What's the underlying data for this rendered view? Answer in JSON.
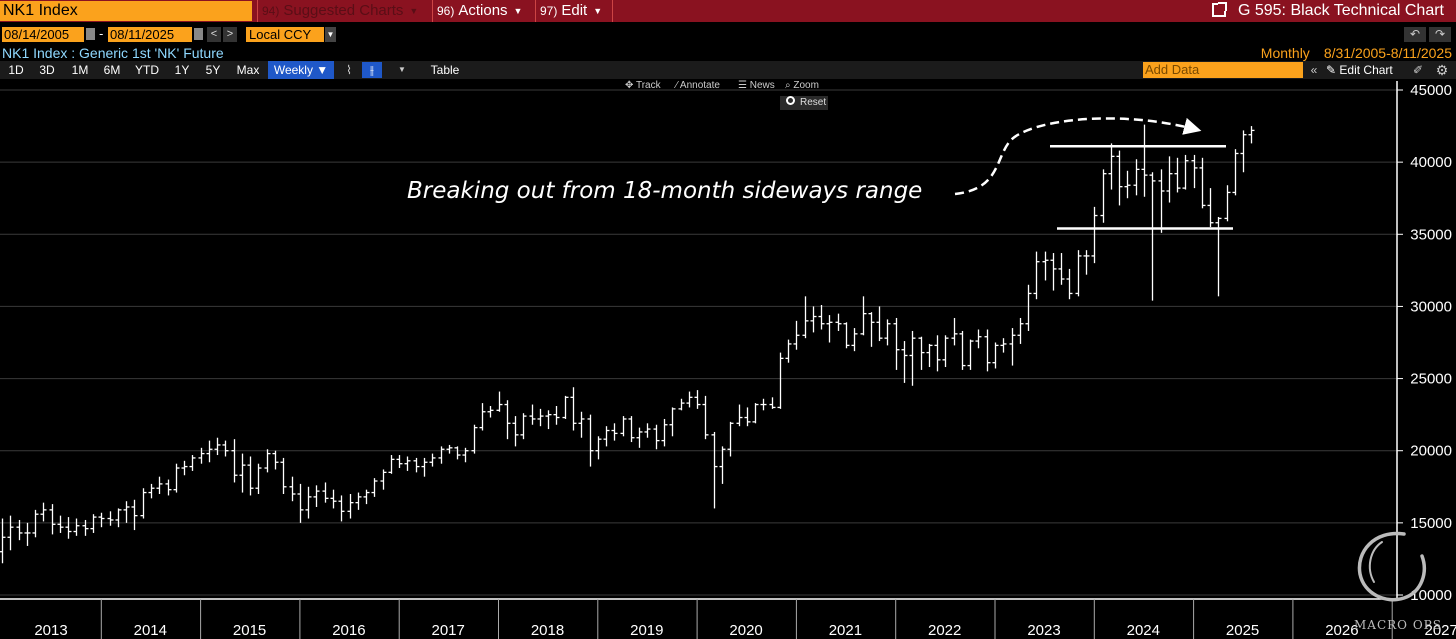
{
  "header": {
    "ticker": "NK1 Index",
    "menu": [
      {
        "num": "94)",
        "label": "Suggested Charts"
      },
      {
        "num": "96)",
        "label": "Actions"
      },
      {
        "num": "97)",
        "label": "Edit"
      }
    ],
    "page_title": "G 595: Black Technical Chart"
  },
  "controls": {
    "start_date": "08/14/2005",
    "end_date": "08/11/2025",
    "date_separator": "-",
    "currency": "Local CCY"
  },
  "security": {
    "description": "NK1 Index : Generic 1st 'NK' Future",
    "periodicity": "Monthly",
    "date_range": "8/31/2005-8/11/2025"
  },
  "toolbar": {
    "ranges": [
      "1D",
      "3D",
      "1M",
      "6M",
      "YTD",
      "1Y",
      "5Y",
      "Max"
    ],
    "frequency": "Weekly ▼",
    "table_label": "Table",
    "add_data_placeholder": "Add Data",
    "edit_chart_label": "Edit Chart"
  },
  "chart_tools": {
    "track": "Track",
    "annotate": "Annotate",
    "news": "News",
    "zoom": "Zoom",
    "reset": "Reset"
  },
  "colors": {
    "header_bg": "#8a1220",
    "amber": "#fba21c",
    "selected_blue": "#1f58c8",
    "info_cyan": "#8fd8ff"
  },
  "watermark": "MACRO OPS",
  "chart_data": {
    "type": "ohlc-bar",
    "annotation": "Breaking out from 18-month sideways range",
    "x_ticks": [
      "2013",
      "2014",
      "2015",
      "2016",
      "2017",
      "2018",
      "2019",
      "2020",
      "2021",
      "2022",
      "2023",
      "2024",
      "2025",
      "2026",
      "2027"
    ],
    "y_ticks": [
      10000,
      15000,
      20000,
      25000,
      30000,
      35000,
      40000,
      45000
    ],
    "ylim": [
      9000,
      46000
    ],
    "range_lines": {
      "upper": 41100,
      "lower": 35400
    },
    "bars": [
      [
        2013.0,
        13000,
        15300,
        12200,
        14000
      ],
      [
        2013.083,
        14000,
        15500,
        13100,
        14700
      ],
      [
        2013.167,
        14700,
        15200,
        13800,
        14300
      ],
      [
        2013.25,
        14300,
        15000,
        13400,
        14300
      ],
      [
        2013.333,
        14300,
        15900,
        14000,
        15600
      ],
      [
        2013.417,
        15600,
        16400,
        15100,
        15900
      ],
      [
        2013.5,
        15900,
        16300,
        14200,
        14900
      ],
      [
        2013.583,
        14900,
        15500,
        14300,
        14700
      ],
      [
        2013.667,
        14700,
        15400,
        13900,
        14400
      ],
      [
        2013.75,
        14400,
        15300,
        14100,
        14800
      ],
      [
        2013.833,
        14800,
        15200,
        14100,
        14600
      ],
      [
        2013.917,
        14600,
        15600,
        14300,
        15400
      ],
      [
        2014.0,
        15400,
        15700,
        14700,
        15300
      ],
      [
        2014.083,
        15300,
        15800,
        14800,
        15200
      ],
      [
        2014.167,
        15200,
        16000,
        14700,
        15900
      ],
      [
        2014.25,
        15900,
        16500,
        15000,
        16100
      ],
      [
        2014.333,
        16100,
        16600,
        14500,
        15500
      ],
      [
        2014.417,
        15500,
        17400,
        15300,
        17100
      ],
      [
        2014.5,
        17100,
        17700,
        16700,
        17400
      ],
      [
        2014.583,
        17400,
        18200,
        17000,
        17700
      ],
      [
        2014.667,
        17700,
        18000,
        16900,
        17300
      ],
      [
        2014.75,
        17300,
        19100,
        17100,
        18800
      ],
      [
        2014.833,
        18800,
        19300,
        18300,
        18900
      ],
      [
        2014.917,
        18900,
        19700,
        18600,
        19500
      ],
      [
        2015.0,
        19500,
        20200,
        19100,
        19800
      ],
      [
        2015.083,
        19800,
        20700,
        19200,
        20100
      ],
      [
        2015.167,
        20100,
        20900,
        19700,
        20400
      ],
      [
        2015.25,
        20400,
        20700,
        19600,
        20000
      ],
      [
        2015.333,
        20000,
        20800,
        17800,
        18300
      ],
      [
        2015.417,
        18300,
        19800,
        17100,
        19000
      ],
      [
        2015.5,
        19000,
        19600,
        16900,
        17400
      ],
      [
        2015.583,
        17400,
        19100,
        17000,
        18800
      ],
      [
        2015.667,
        18800,
        20100,
        18500,
        19800
      ],
      [
        2015.75,
        19800,
        20000,
        18700,
        19200
      ],
      [
        2015.833,
        19200,
        19500,
        17000,
        17500
      ],
      [
        2015.917,
        17500,
        18200,
        16500,
        17000
      ],
      [
        2016.0,
        17000,
        17700,
        15000,
        15900
      ],
      [
        2016.083,
        15900,
        17500,
        15300,
        16800
      ],
      [
        2016.167,
        16800,
        17600,
        16100,
        17200
      ],
      [
        2016.25,
        17200,
        17800,
        16400,
        16700
      ],
      [
        2016.333,
        16700,
        17300,
        16000,
        16500
      ],
      [
        2016.417,
        16500,
        16900,
        15100,
        15800
      ],
      [
        2016.5,
        15800,
        17000,
        15300,
        16400
      ],
      [
        2016.583,
        16400,
        17100,
        15900,
        16800
      ],
      [
        2016.667,
        16800,
        17300,
        16300,
        17100
      ],
      [
        2016.75,
        17100,
        18100,
        16800,
        17900
      ],
      [
        2016.833,
        17900,
        18700,
        17300,
        18500
      ],
      [
        2016.917,
        18500,
        19700,
        18400,
        19400
      ],
      [
        2017.0,
        19400,
        19700,
        18800,
        19100
      ],
      [
        2017.083,
        19100,
        19600,
        18600,
        19300
      ],
      [
        2017.167,
        19300,
        19500,
        18500,
        18900
      ],
      [
        2017.25,
        18900,
        19500,
        18200,
        19200
      ],
      [
        2017.333,
        19200,
        19800,
        18900,
        19500
      ],
      [
        2017.417,
        19500,
        20300,
        19100,
        20100
      ],
      [
        2017.5,
        20100,
        20400,
        19800,
        20200
      ],
      [
        2017.583,
        20200,
        20300,
        19400,
        19700
      ],
      [
        2017.667,
        19700,
        20200,
        19200,
        20000
      ],
      [
        2017.75,
        20000,
        21800,
        19800,
        21600
      ],
      [
        2017.833,
        21600,
        23300,
        21400,
        22700
      ],
      [
        2017.917,
        22700,
        23100,
        22300,
        22800
      ],
      [
        2018.0,
        22800,
        24100,
        22700,
        23200
      ],
      [
        2018.083,
        23200,
        23500,
        20800,
        21900
      ],
      [
        2018.167,
        21900,
        22400,
        20300,
        21100
      ],
      [
        2018.25,
        21100,
        22600,
        20800,
        22400
      ],
      [
        2018.333,
        22400,
        23200,
        21800,
        22200
      ],
      [
        2018.417,
        22200,
        22900,
        21700,
        22400
      ],
      [
        2018.5,
        22400,
        22800,
        21500,
        22500
      ],
      [
        2018.583,
        22500,
        23100,
        21800,
        22300
      ],
      [
        2018.667,
        22300,
        23800,
        22200,
        23700
      ],
      [
        2018.75,
        23700,
        24400,
        21400,
        21900
      ],
      [
        2018.833,
        21900,
        22700,
        20900,
        22200
      ],
      [
        2018.917,
        22200,
        22500,
        18900,
        20000
      ],
      [
        2019.0,
        20000,
        21000,
        19400,
        20800
      ],
      [
        2019.083,
        20800,
        21700,
        20300,
        21400
      ],
      [
        2019.167,
        21400,
        21900,
        20700,
        21200
      ],
      [
        2019.25,
        21200,
        22400,
        21000,
        22200
      ],
      [
        2019.333,
        22200,
        22400,
        20600,
        20900
      ],
      [
        2019.417,
        20900,
        21600,
        20200,
        21300
      ],
      [
        2019.5,
        21300,
        21900,
        20900,
        21500
      ],
      [
        2019.583,
        21500,
        21800,
        20100,
        20700
      ],
      [
        2019.667,
        20700,
        22200,
        20300,
        21800
      ],
      [
        2019.75,
        21800,
        23000,
        21000,
        22900
      ],
      [
        2019.833,
        22900,
        23600,
        22800,
        23300
      ],
      [
        2019.917,
        23300,
        24100,
        23000,
        23700
      ],
      [
        2020.0,
        23700,
        24200,
        22900,
        23200
      ],
      [
        2020.083,
        23200,
        23800,
        20800,
        21100
      ],
      [
        2020.167,
        21100,
        21300,
        16000,
        18900
      ],
      [
        2020.25,
        18900,
        20300,
        17700,
        20100
      ],
      [
        2020.333,
        20100,
        22000,
        19600,
        21900
      ],
      [
        2020.417,
        21900,
        23200,
        21700,
        22300
      ],
      [
        2020.5,
        22300,
        23000,
        21700,
        22000
      ],
      [
        2020.583,
        22000,
        23300,
        21900,
        23200
      ],
      [
        2020.667,
        23200,
        23600,
        22800,
        23200
      ],
      [
        2020.75,
        23200,
        23700,
        22900,
        23000
      ],
      [
        2020.833,
        23000,
        26800,
        22900,
        26400
      ],
      [
        2020.917,
        26400,
        27700,
        26100,
        27400
      ],
      [
        2021.0,
        27400,
        29000,
        27000,
        28000
      ],
      [
        2021.083,
        28000,
        30700,
        27800,
        29000
      ],
      [
        2021.167,
        29000,
        30000,
        28200,
        29300
      ],
      [
        2021.25,
        29300,
        30100,
        28400,
        28800
      ],
      [
        2021.333,
        28800,
        29400,
        27500,
        28900
      ],
      [
        2021.417,
        28900,
        29500,
        28300,
        28800
      ],
      [
        2021.5,
        28800,
        28900,
        27100,
        27300
      ],
      [
        2021.583,
        27300,
        28500,
        26900,
        28100
      ],
      [
        2021.667,
        28100,
        30700,
        28000,
        29500
      ],
      [
        2021.75,
        29500,
        29600,
        27200,
        28900
      ],
      [
        2021.833,
        28900,
        30000,
        27600,
        27800
      ],
      [
        2021.917,
        27800,
        29100,
        27300,
        28800
      ],
      [
        2022.0,
        28800,
        29200,
        25600,
        27000
      ],
      [
        2022.083,
        27000,
        27600,
        24700,
        26600
      ],
      [
        2022.167,
        26600,
        28300,
        24500,
        27800
      ],
      [
        2022.25,
        27800,
        27900,
        25600,
        26800
      ],
      [
        2022.333,
        26800,
        27400,
        25800,
        27300
      ],
      [
        2022.417,
        27300,
        28000,
        25500,
        26300
      ],
      [
        2022.5,
        26300,
        28000,
        25800,
        27800
      ],
      [
        2022.583,
        27800,
        29200,
        27300,
        28100
      ],
      [
        2022.667,
        28100,
        28300,
        25600,
        25900
      ],
      [
        2022.75,
        25900,
        27700,
        25600,
        27600
      ],
      [
        2022.833,
        27600,
        28400,
        27100,
        27900
      ],
      [
        2022.917,
        27900,
        28400,
        25500,
        26100
      ],
      [
        2023.0,
        26100,
        27500,
        25700,
        27300
      ],
      [
        2023.083,
        27300,
        27800,
        26800,
        27400
      ],
      [
        2023.167,
        27400,
        28500,
        25900,
        28000
      ],
      [
        2023.25,
        28000,
        29200,
        27400,
        28800
      ],
      [
        2023.333,
        28800,
        31500,
        28300,
        30900
      ],
      [
        2023.417,
        30900,
        33800,
        30500,
        33100
      ],
      [
        2023.5,
        33100,
        33800,
        31800,
        33200
      ],
      [
        2023.583,
        33200,
        33700,
        31100,
        32600
      ],
      [
        2023.667,
        32600,
        33700,
        31500,
        31900
      ],
      [
        2023.75,
        31900,
        32600,
        30500,
        30900
      ],
      [
        2023.833,
        30900,
        33900,
        30700,
        33500
      ],
      [
        2023.917,
        33500,
        33900,
        32200,
        33500
      ],
      [
        2024.0,
        33500,
        36900,
        33000,
        36300
      ],
      [
        2024.083,
        36300,
        39500,
        35800,
        39200
      ],
      [
        2024.167,
        39200,
        41300,
        38100,
        40400
      ],
      [
        2024.25,
        40400,
        40800,
        37000,
        38300
      ],
      [
        2024.333,
        38300,
        39400,
        37500,
        38400
      ],
      [
        2024.417,
        38400,
        40200,
        37700,
        39500
      ],
      [
        2024.5,
        39500,
        42600,
        37600,
        39100
      ],
      [
        2024.583,
        39100,
        39300,
        30400,
        38700
      ],
      [
        2024.667,
        38700,
        39500,
        35100,
        38000
      ],
      [
        2024.75,
        38000,
        40400,
        37200,
        39200
      ],
      [
        2024.833,
        39200,
        40300,
        37900,
        38200
      ],
      [
        2024.917,
        38200,
        40500,
        38100,
        40100
      ],
      [
        2025.0,
        40100,
        40500,
        38200,
        39600
      ],
      [
        2025.083,
        39600,
        40300,
        36800,
        37000
      ],
      [
        2025.167,
        37000,
        38200,
        35500,
        35800
      ],
      [
        2025.25,
        35800,
        36200,
        30700,
        36100
      ],
      [
        2025.333,
        36100,
        38400,
        35900,
        37900
      ],
      [
        2025.417,
        37900,
        40900,
        37700,
        40600
      ],
      [
        2025.5,
        40600,
        42200,
        39300,
        41900
      ],
      [
        2025.583,
        41900,
        42500,
        41300,
        42200
      ]
    ]
  }
}
